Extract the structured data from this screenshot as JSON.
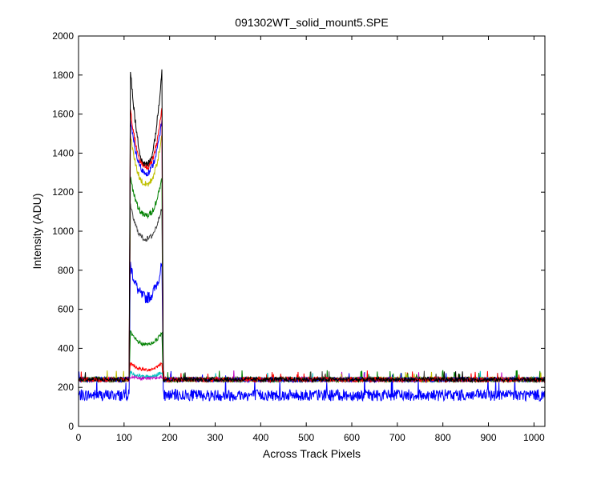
{
  "chart_data": {
    "type": "line",
    "title": "091302WT_solid_mount5.SPE",
    "xlabel": "Across Track Pixels",
    "ylabel": "Intensity (ADU)",
    "xlim": [
      0,
      1024
    ],
    "ylim": [
      0,
      2000
    ],
    "xticks": [
      0,
      100,
      200,
      300,
      400,
      500,
      600,
      700,
      800,
      900,
      1000
    ],
    "yticks": [
      0,
      200,
      400,
      600,
      800,
      1000,
      1200,
      1400,
      1600,
      1800,
      2000
    ],
    "grid": false,
    "legend": "none",
    "noise_seed": 7,
    "series": [
      {
        "color": "#0000ff",
        "baseline": 160,
        "noise": 30,
        "region": [
          112,
          185
        ],
        "edge_peak": 850,
        "center": 660
      },
      {
        "color": "#008000",
        "baseline": 240,
        "noise": 12,
        "region": [
          112,
          185
        ],
        "edge_peak": 490,
        "center": 420
      },
      {
        "color": "#ff0000",
        "baseline": 240,
        "noise": 12,
        "region": [
          112,
          185
        ],
        "edge_peak": 330,
        "center": 290
      },
      {
        "color": "#00bfbf",
        "baseline": 240,
        "noise": 12,
        "region": [
          112,
          185
        ],
        "edge_peak": 280,
        "center": 255
      },
      {
        "color": "#bf00bf",
        "baseline": 240,
        "noise": 12,
        "region": [
          112,
          185
        ],
        "edge_peak": 255,
        "center": 245
      },
      {
        "color": "#404040",
        "baseline": 240,
        "noise": 12,
        "region": [
          112,
          185
        ],
        "edge_peak": 1150,
        "center": 960
      },
      {
        "color": "#008000",
        "baseline": 240,
        "noise": 12,
        "region": [
          112,
          185
        ],
        "edge_peak": 1300,
        "center": 1080
      },
      {
        "color": "#bfbf00",
        "baseline": 240,
        "noise": 12,
        "region": [
          112,
          185
        ],
        "edge_peak": 1520,
        "center": 1240
      },
      {
        "color": "#0000ff",
        "baseline": 240,
        "noise": 12,
        "region": [
          112,
          185
        ],
        "edge_peak": 1600,
        "center": 1300
      },
      {
        "color": "#ff0000",
        "baseline": 240,
        "noise": 12,
        "region": [
          112,
          185
        ],
        "edge_peak": 1660,
        "center": 1330
      },
      {
        "color": "#000000",
        "baseline": 240,
        "noise": 12,
        "region": [
          112,
          185
        ],
        "edge_peak": 1900,
        "center": 1340
      }
    ]
  }
}
